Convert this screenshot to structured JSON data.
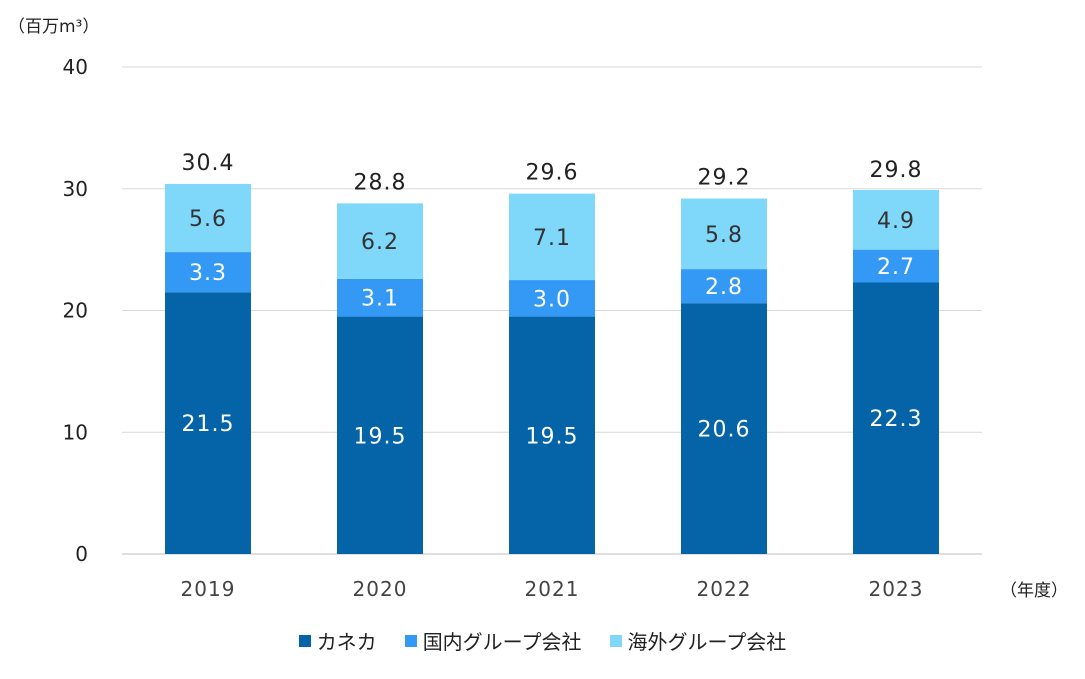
{
  "chart_data": {
    "type": "bar",
    "stacked": true,
    "categories": [
      "2019",
      "2020",
      "2021",
      "2022",
      "2023"
    ],
    "series": [
      {
        "name": "カネカ",
        "values": [
          21.5,
          19.5,
          19.5,
          20.6,
          22.3
        ],
        "color": "#0563A8",
        "label_color": "#ffffff"
      },
      {
        "name": "国内グループ会社",
        "values": [
          3.3,
          3.1,
          3.0,
          2.8,
          2.7
        ],
        "color": "#3399F5",
        "label_color": "#ffffff"
      },
      {
        "name": "海外グループ会社",
        "values": [
          5.6,
          6.2,
          7.1,
          5.8,
          4.9
        ],
        "color": "#7FD8FA",
        "label_color": "#333333"
      }
    ],
    "value_labels": [
      [
        "21.5",
        "19.5",
        "19.5",
        "20.6",
        "22.3"
      ],
      [
        "3.3",
        "3.1",
        "3.0",
        "2.8",
        "2.7"
      ],
      [
        "5.6",
        "6.2",
        "7.1",
        "5.8",
        "4.9"
      ]
    ],
    "totals": [
      "30.4",
      "28.8",
      "29.6",
      "29.2",
      "29.8"
    ],
    "total_values": [
      30.4,
      28.8,
      29.6,
      29.2,
      29.8
    ],
    "ylim": [
      0,
      40
    ],
    "yticks": [
      "0",
      "10",
      "20",
      "30",
      "40"
    ],
    "ytick_values": [
      0,
      10,
      20,
      30,
      40
    ],
    "ylabel": "（百万m³）",
    "xlabel": "（年度）",
    "grid": true,
    "legend_position": "bottom"
  }
}
